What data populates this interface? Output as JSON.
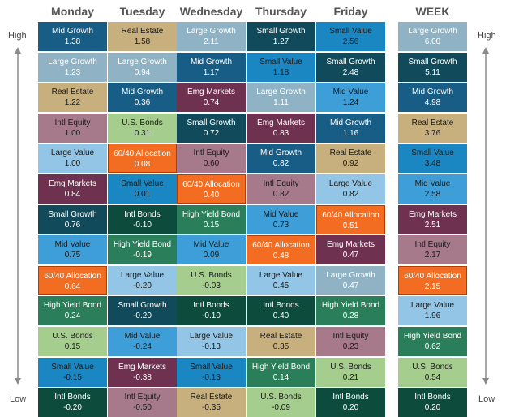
{
  "chart_data": {
    "type": "table",
    "side_labels": {
      "high": "High",
      "low": "Low"
    },
    "columns": [
      {
        "header": "Monday",
        "cells": [
          {
            "asset": "Mid Growth",
            "value": "1.38"
          },
          {
            "asset": "Large Growth",
            "value": "1.23"
          },
          {
            "asset": "Real Estate",
            "value": "1.22"
          },
          {
            "asset": "Intl Equity",
            "value": "1.00"
          },
          {
            "asset": "Large Value",
            "value": "1.00"
          },
          {
            "asset": "Emg Markets",
            "value": "0.84"
          },
          {
            "asset": "Small Growth",
            "value": "0.76"
          },
          {
            "asset": "Mid Value",
            "value": "0.75"
          },
          {
            "asset": "60/40 Allocation",
            "value": "0.64"
          },
          {
            "asset": "High Yield Bond",
            "value": "0.24"
          },
          {
            "asset": "U.S. Bonds",
            "value": "0.15"
          },
          {
            "asset": "Small Value",
            "value": "-0.15"
          },
          {
            "asset": "Intl Bonds",
            "value": "-0.20"
          }
        ]
      },
      {
        "header": "Tuesday",
        "cells": [
          {
            "asset": "Real Estate",
            "value": "1.58"
          },
          {
            "asset": "Large Growth",
            "value": "0.94"
          },
          {
            "asset": "Mid Growth",
            "value": "0.36"
          },
          {
            "asset": "U.S. Bonds",
            "value": "0.31"
          },
          {
            "asset": "60/40 Allocation",
            "value": "0.08"
          },
          {
            "asset": "Small Value",
            "value": "0.01"
          },
          {
            "asset": "Intl Bonds",
            "value": "-0.10"
          },
          {
            "asset": "High Yield Bond",
            "value": "-0.19"
          },
          {
            "asset": "Large Value",
            "value": "-0.20"
          },
          {
            "asset": "Small Growth",
            "value": "-0.20"
          },
          {
            "asset": "Mid Value",
            "value": "-0.24"
          },
          {
            "asset": "Emg Markets",
            "value": "-0.38"
          },
          {
            "asset": "Intl Equity",
            "value": "-0.50"
          }
        ]
      },
      {
        "header": "Wednesday",
        "cells": [
          {
            "asset": "Large Growth",
            "value": "2.11"
          },
          {
            "asset": "Mid Growth",
            "value": "1.17"
          },
          {
            "asset": "Emg Markets",
            "value": "0.74"
          },
          {
            "asset": "Small Growth",
            "value": "0.72"
          },
          {
            "asset": "Intl Equity",
            "value": "0.60"
          },
          {
            "asset": "60/40 Allocation",
            "value": "0.40"
          },
          {
            "asset": "High Yield Bond",
            "value": "0.15"
          },
          {
            "asset": "Mid Value",
            "value": "0.09"
          },
          {
            "asset": "U.S. Bonds",
            "value": "-0.03"
          },
          {
            "asset": "Intl Bonds",
            "value": "-0.10"
          },
          {
            "asset": "Large Value",
            "value": "-0.13"
          },
          {
            "asset": "Small Value",
            "value": "-0.13"
          },
          {
            "asset": "Real Estate",
            "value": "-0.35"
          }
        ]
      },
      {
        "header": "Thursday",
        "cells": [
          {
            "asset": "Small Growth",
            "value": "1.27"
          },
          {
            "asset": "Small Value",
            "value": "1.18"
          },
          {
            "asset": "Large Growth",
            "value": "1.11"
          },
          {
            "asset": "Emg Markets",
            "value": "0.83"
          },
          {
            "asset": "Mid Growth",
            "value": "0.82"
          },
          {
            "asset": "Intl Equity",
            "value": "0.82"
          },
          {
            "asset": "Mid Value",
            "value": "0.73"
          },
          {
            "asset": "60/40 Allocation",
            "value": "0.48"
          },
          {
            "asset": "Large Value",
            "value": "0.45"
          },
          {
            "asset": "Intl Bonds",
            "value": "0.40"
          },
          {
            "asset": "Real Estate",
            "value": "0.35"
          },
          {
            "asset": "High Yield Bond",
            "value": "0.14"
          },
          {
            "asset": "U.S. Bonds",
            "value": "-0.09"
          }
        ]
      },
      {
        "header": "Friday",
        "cells": [
          {
            "asset": "Small Value",
            "value": "2.56"
          },
          {
            "asset": "Small Growth",
            "value": "2.48"
          },
          {
            "asset": "Mid Value",
            "value": "1.24"
          },
          {
            "asset": "Mid Growth",
            "value": "1.16"
          },
          {
            "asset": "Real Estate",
            "value": "0.92"
          },
          {
            "asset": "Large Value",
            "value": "0.82"
          },
          {
            "asset": "60/40 Allocation",
            "value": "0.51"
          },
          {
            "asset": "Emg Markets",
            "value": "0.47"
          },
          {
            "asset": "Large Growth",
            "value": "0.47"
          },
          {
            "asset": "High Yield Bond",
            "value": "0.28"
          },
          {
            "asset": "Intl Equity",
            "value": "0.23"
          },
          {
            "asset": "U.S. Bonds",
            "value": "0.21"
          },
          {
            "asset": "Intl Bonds",
            "value": "0.20"
          }
        ]
      },
      {
        "header": "WEEK",
        "cells": [
          {
            "asset": "Large Growth",
            "value": "6.00"
          },
          {
            "asset": "Small Growth",
            "value": "5.11"
          },
          {
            "asset": "Mid Growth",
            "value": "4.98"
          },
          {
            "asset": "Real Estate",
            "value": "3.76"
          },
          {
            "asset": "Small Value",
            "value": "3.48"
          },
          {
            "asset": "Mid Value",
            "value": "2.58"
          },
          {
            "asset": "Emg Markets",
            "value": "2.51"
          },
          {
            "asset": "Intl Equity",
            "value": "2.17"
          },
          {
            "asset": "60/40 Allocation",
            "value": "2.15"
          },
          {
            "asset": "Large Value",
            "value": "1.96"
          },
          {
            "asset": "High Yield Bond",
            "value": "0.62"
          },
          {
            "asset": "U.S. Bonds",
            "value": "0.54"
          },
          {
            "asset": "Intl Bonds",
            "value": "0.20"
          }
        ]
      }
    ],
    "asset_colors": {
      "Mid Growth": {
        "bg": "#185d85",
        "fg": "#ffffff"
      },
      "Large Growth": {
        "bg": "#8fb3c4",
        "fg": "#ffffff"
      },
      "Real Estate": {
        "bg": "#c7b07e",
        "fg": "#1a1a1a"
      },
      "Intl Equity": {
        "bg": "#a6798b",
        "fg": "#1a1a1a"
      },
      "Large Value": {
        "bg": "#93c6e6",
        "fg": "#1a1a1a"
      },
      "Emg Markets": {
        "bg": "#6e3150",
        "fg": "#ffffff"
      },
      "Small Growth": {
        "bg": "#114a5a",
        "fg": "#ffffff"
      },
      "Mid Value": {
        "bg": "#3e9fd8",
        "fg": "#1a1a1a"
      },
      "60/40 Allocation": {
        "bg": "#f26d21",
        "fg": "#ffffff"
      },
      "High Yield Bond": {
        "bg": "#2a7f5a",
        "fg": "#ffffff"
      },
      "U.S. Bonds": {
        "bg": "#a5cd8e",
        "fg": "#1a1a1a"
      },
      "Small Value": {
        "bg": "#1a86c2",
        "fg": "#1a1a1a"
      },
      "Intl Bonds": {
        "bg": "#0d4b3c",
        "fg": "#ffffff"
      }
    },
    "axis_color": "#8a8a8a"
  }
}
